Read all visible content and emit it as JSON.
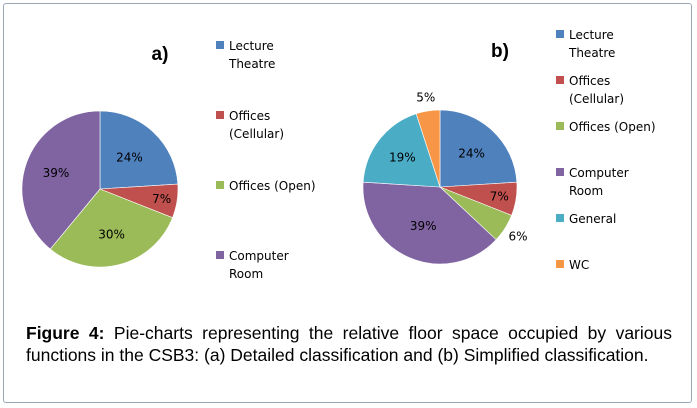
{
  "figure": {
    "caption_label": "Figure 4:",
    "caption_text": " Pie-charts representing the relative floor space occupied by various functions in the CSB3: (a) Detailed classification and (b) Simplified classification."
  },
  "chart_data": [
    {
      "type": "pie",
      "panel_label": "a)",
      "categories": [
        "Lecture Theatre",
        "Offices (Cellular)",
        "Offices (Open)",
        "Computer Room"
      ],
      "values": [
        24,
        7,
        30,
        39
      ],
      "data_labels": [
        "24%",
        "7%",
        "30%",
        "39%"
      ],
      "colors": [
        "#4f81bd",
        "#c0504d",
        "#9bbb59",
        "#8064a2"
      ],
      "legend_labels": [
        [
          "Lecture",
          "Theatre"
        ],
        [
          "Offices",
          "(Cellular)"
        ],
        [
          "Offices (Open)"
        ],
        [
          "Computer",
          "Room"
        ]
      ],
      "legend_placement": "right"
    },
    {
      "type": "pie",
      "panel_label": "b)",
      "categories": [
        "Lecture Theatre",
        "Offices (Cellular)",
        "Offices (Open)",
        "Computer Room",
        "General",
        "WC"
      ],
      "values": [
        24,
        7,
        6,
        39,
        19,
        5
      ],
      "data_labels": [
        "24%",
        "7%",
        "6%",
        "39%",
        "19%",
        "5%"
      ],
      "colors": [
        "#4f81bd",
        "#c0504d",
        "#9bbb59",
        "#8064a2",
        "#4bacc6",
        "#f79646"
      ],
      "legend_labels": [
        [
          "Lecture",
          "Theatre"
        ],
        [
          "Offices",
          "(Cellular)"
        ],
        [
          "Offices (Open)"
        ],
        [
          "Computer",
          "Room"
        ],
        [
          "General"
        ],
        [
          "WC"
        ]
      ],
      "legend_placement": "right"
    }
  ]
}
